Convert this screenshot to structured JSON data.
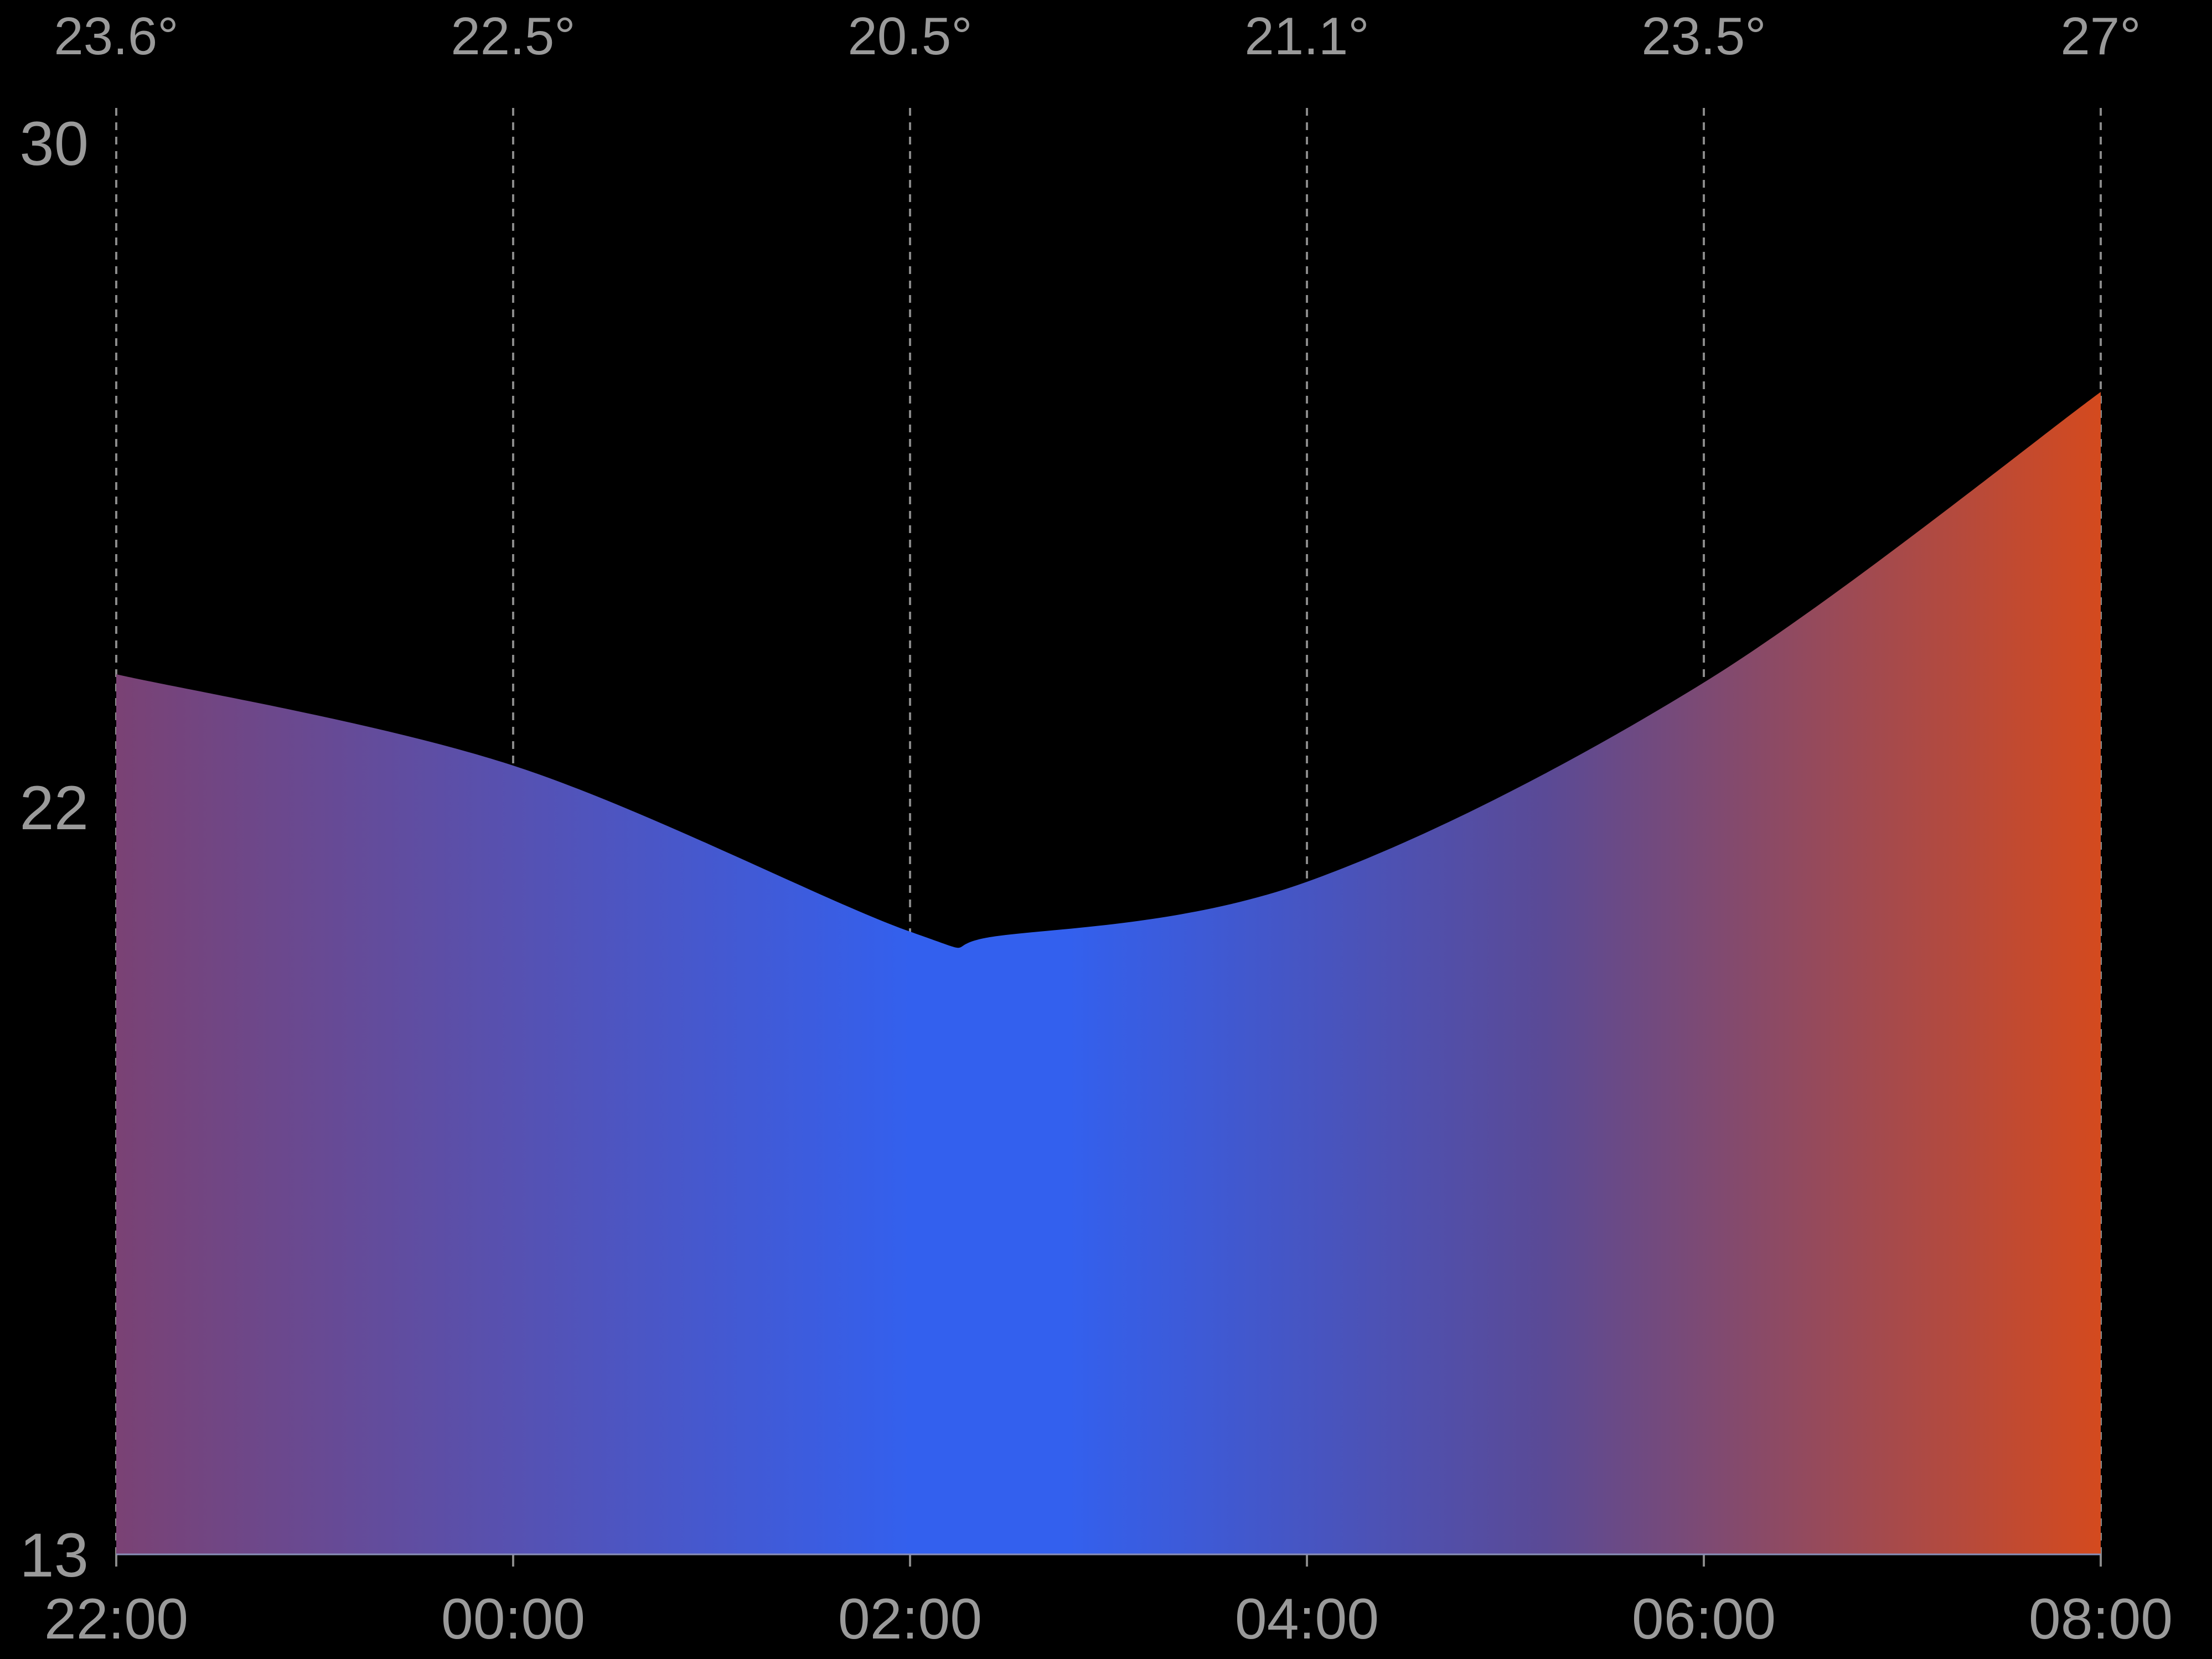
{
  "chart_data": {
    "type": "area",
    "title": "",
    "xlabel": "",
    "ylabel": "",
    "x_ticks": [
      "22:00",
      "00:00",
      "02:00",
      "04:00",
      "06:00",
      "08:00"
    ],
    "top_labels": [
      "23.6°",
      "22.5°",
      "20.5°",
      "21.1°",
      "23.5°",
      "27°"
    ],
    "y_ticks": [
      "30",
      "22",
      "13"
    ],
    "ylim": [
      13,
      30
    ],
    "series": [
      {
        "x_hours": [
          0,
          2,
          4,
          4.45,
          6,
          8,
          10
        ],
        "values": [
          23.6,
          22.5,
          20.5,
          20.45,
          21.1,
          23.5,
          27.0
        ]
      }
    ],
    "grid": "vertical dashed",
    "colors": {
      "background": "#000000",
      "gradient_start": "#7a4274",
      "gradient_mid": "#3360ee",
      "gradient_end": "#d44a1e",
      "grid": "#8a8a8a",
      "text": "#9a9a9a"
    }
  }
}
